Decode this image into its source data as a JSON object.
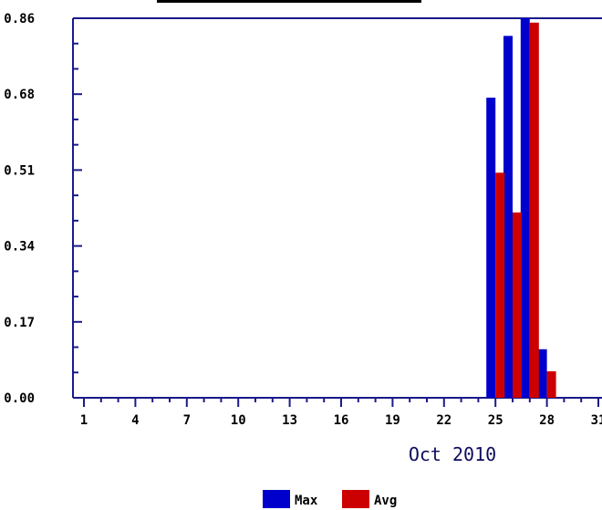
{
  "chart_data": {
    "type": "bar",
    "period_label": "Oct 2010",
    "x_tick_labels": [
      "1",
      "4",
      "7",
      "10",
      "13",
      "16",
      "19",
      "22",
      "25",
      "28",
      "31"
    ],
    "y_tick_labels": [
      "0.00",
      "0.17",
      "0.34",
      "0.51",
      "0.68",
      "0.86"
    ],
    "ylim": [
      0,
      0.86
    ],
    "xlim": [
      0.5,
      31.5
    ],
    "grid": false,
    "legend_position": "bottom-center",
    "colors": {
      "axis": "#1a1a8c",
      "Max": "#0000cc",
      "Avg": "#cc0000"
    },
    "series": [
      {
        "name": "Max",
        "days": [
          25,
          26,
          27,
          28
        ],
        "values": [
          0.68,
          0.82,
          0.86,
          0.11
        ]
      },
      {
        "name": "Avg",
        "days": [
          25,
          26,
          27,
          28
        ],
        "values": [
          0.51,
          0.42,
          0.85,
          0.06
        ]
      }
    ]
  }
}
